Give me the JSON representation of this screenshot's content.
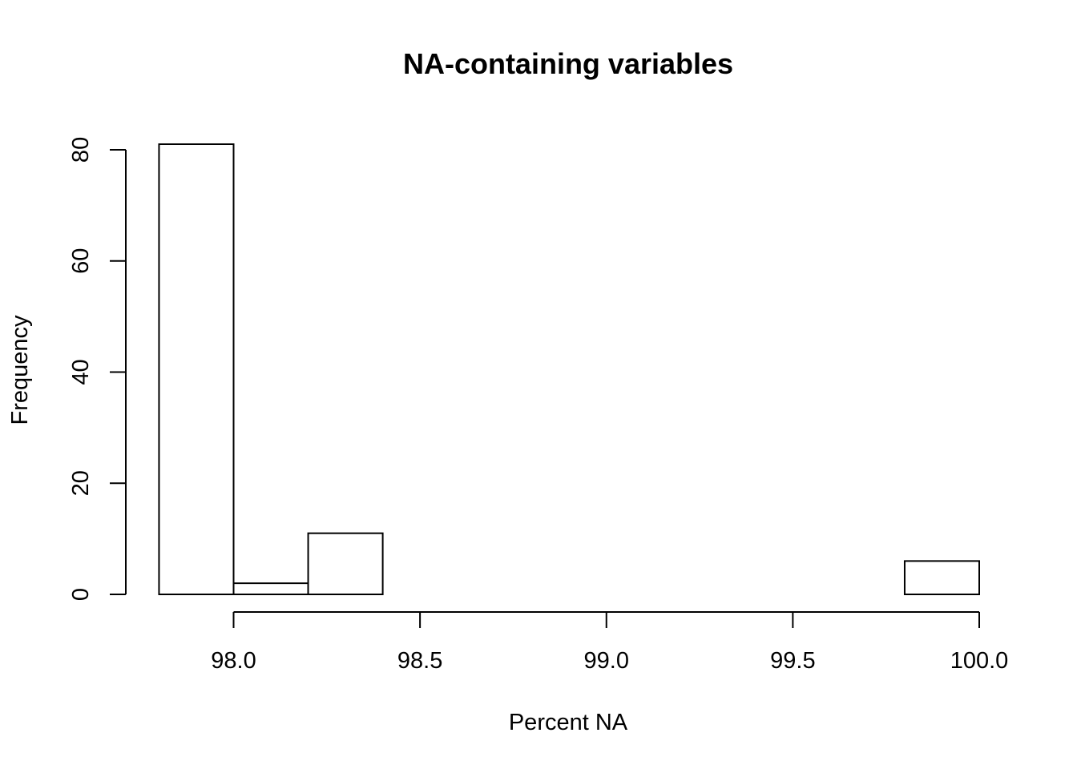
{
  "chart_data": {
    "type": "bar",
    "title": "NA-containing variables",
    "xlabel": "Percent NA",
    "ylabel": "Frequency",
    "bins": [
      {
        "start": 97.8,
        "end": 98.0,
        "count": 81
      },
      {
        "start": 98.0,
        "end": 98.2,
        "count": 2
      },
      {
        "start": 98.2,
        "end": 98.4,
        "count": 11
      },
      {
        "start": 98.4,
        "end": 98.6,
        "count": 0
      },
      {
        "start": 98.6,
        "end": 98.8,
        "count": 0
      },
      {
        "start": 98.8,
        "end": 99.0,
        "count": 0
      },
      {
        "start": 99.0,
        "end": 99.2,
        "count": 0
      },
      {
        "start": 99.2,
        "end": 99.4,
        "count": 0
      },
      {
        "start": 99.4,
        "end": 99.6,
        "count": 0
      },
      {
        "start": 99.6,
        "end": 99.8,
        "count": 0
      },
      {
        "start": 99.8,
        "end": 100.0,
        "count": 6
      }
    ],
    "x_ticks": [
      98.0,
      98.5,
      99.0,
      99.5,
      100.0
    ],
    "x_tick_labels": [
      "98.0",
      "98.5",
      "99.0",
      "99.5",
      "100.0"
    ],
    "y_ticks": [
      0,
      20,
      40,
      60,
      80
    ],
    "y_tick_labels": [
      "0",
      "20",
      "40",
      "60",
      "80"
    ],
    "xlim": [
      97.8,
      100.0
    ],
    "ylim": [
      0,
      81
    ],
    "grid": false,
    "legend": "none"
  }
}
